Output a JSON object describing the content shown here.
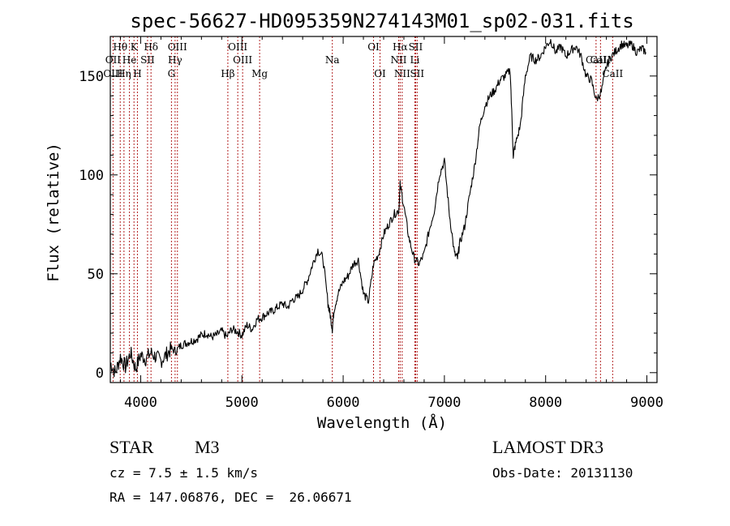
{
  "chart_data": {
    "type": "line",
    "title": "spec-56627-HD095359N274143M01_sp02-031.fits",
    "xlabel": "Wavelength (Å)",
    "ylabel": "Flux (relative)",
    "xlim": [
      3700,
      9100
    ],
    "ylim": [
      -5,
      170
    ],
    "xticks": [
      4000,
      5000,
      6000,
      7000,
      8000,
      9000
    ],
    "yticks": [
      0,
      50,
      100,
      150
    ],
    "ytick_labels": [
      "0",
      "50",
      "100",
      "150"
    ],
    "series": [
      {
        "name": "spectrum",
        "x": [
          3700,
          3750,
          3800,
          3850,
          3900,
          3950,
          4000,
          4050,
          4100,
          4150,
          4200,
          4250,
          4300,
          4350,
          4400,
          4450,
          4500,
          4550,
          4600,
          4650,
          4700,
          4750,
          4800,
          4850,
          4900,
          4950,
          5000,
          5050,
          5100,
          5150,
          5200,
          5250,
          5300,
          5350,
          5400,
          5450,
          5500,
          5550,
          5600,
          5650,
          5700,
          5750,
          5800,
          5850,
          5870,
          5893,
          5910,
          5950,
          6000,
          6050,
          6100,
          6150,
          6200,
          6250,
          6300,
          6350,
          6400,
          6450,
          6500,
          6550,
          6563,
          6600,
          6650,
          6700,
          6750,
          6800,
          6850,
          6900,
          6950,
          7000,
          7050,
          7100,
          7130,
          7150,
          7200,
          7250,
          7300,
          7350,
          7400,
          7450,
          7500,
          7550,
          7600,
          7650,
          7680,
          7700,
          7750,
          7800,
          7850,
          7900,
          7950,
          8000,
          8050,
          8100,
          8150,
          8200,
          8250,
          8300,
          8350,
          8400,
          8450,
          8500,
          8550,
          8600,
          8650,
          8700,
          8750,
          8800,
          8850,
          8900,
          8950,
          8990
        ],
        "values": [
          5,
          0,
          8,
          3,
          10,
          2,
          9,
          7,
          10,
          8,
          6,
          9,
          12,
          11,
          14,
          15,
          16,
          17,
          19,
          20,
          18,
          19,
          21,
          18,
          22,
          21,
          19,
          24,
          22,
          27,
          28,
          30,
          31,
          33,
          35,
          33,
          37,
          38,
          42,
          47,
          55,
          62,
          58,
          35,
          30,
          22,
          32,
          40,
          46,
          49,
          55,
          57,
          40,
          36,
          55,
          60,
          70,
          75,
          80,
          82,
          95,
          84,
          68,
          58,
          55,
          60,
          72,
          82,
          100,
          107,
          80,
          60,
          58,
          65,
          74,
          90,
          105,
          125,
          135,
          140,
          143,
          148,
          150,
          153,
          110,
          115,
          125,
          150,
          160,
          158,
          160,
          165,
          168,
          162,
          165,
          160,
          163,
          165,
          160,
          150,
          148,
          138,
          142,
          155,
          160,
          163,
          166,
          165,
          166,
          162,
          164,
          162
        ]
      }
    ],
    "lines_top": [
      {
        "label": "Hθ",
        "x": 3798
      },
      {
        "label": "K",
        "x": 3934
      },
      {
        "label": "Hδ",
        "x": 4102
      },
      {
        "label": "OIII",
        "x": 4363
      },
      {
        "label": "OIII",
        "x": 4959
      },
      {
        "label": "OI",
        "x": 6300
      },
      {
        "label": "Hα",
        "x": 6563
      },
      {
        "label": "SII",
        "x": 6716
      }
    ],
    "lines_mid": [
      {
        "label": "OII",
        "x": 3727
      },
      {
        "label": "He",
        "x": 3889
      },
      {
        "label": "SII",
        "x": 4068
      },
      {
        "label": "Hγ",
        "x": 4340
      },
      {
        "label": "OIII",
        "x": 5007
      },
      {
        "label": "Na",
        "x": 5893
      },
      {
        "label": "NII",
        "x": 6548
      },
      {
        "label": "Li",
        "x": 6708
      },
      {
        "label": "CaII",
        "x": 8498
      },
      {
        "label": "CaII",
        "x": 8542
      }
    ],
    "lines_bot": [
      {
        "label": "OIII",
        "x": 3727
      },
      {
        "label": "Hη",
        "x": 3835
      },
      {
        "label": "H",
        "x": 3968
      },
      {
        "label": "G",
        "x": 4304
      },
      {
        "label": "Hβ",
        "x": 4861
      },
      {
        "label": "Mg",
        "x": 5175
      },
      {
        "label": "OI",
        "x": 6364
      },
      {
        "label": "NII",
        "x": 6583
      },
      {
        "label": "SII",
        "x": 6731
      },
      {
        "label": "CaII",
        "x": 8662
      }
    ]
  },
  "info": {
    "object_type": "STAR",
    "subclass": "M3",
    "survey": "LAMOST DR3",
    "velocity": "cz = 7.5 ± 1.5 km/s",
    "obs_date": "Obs-Date: 20131130",
    "coords": "RA = 147.06876, DEC =  26.06671"
  },
  "colors": {
    "axis": "#000000",
    "spectrum": "#000000",
    "line_markers": "#b22222"
  }
}
